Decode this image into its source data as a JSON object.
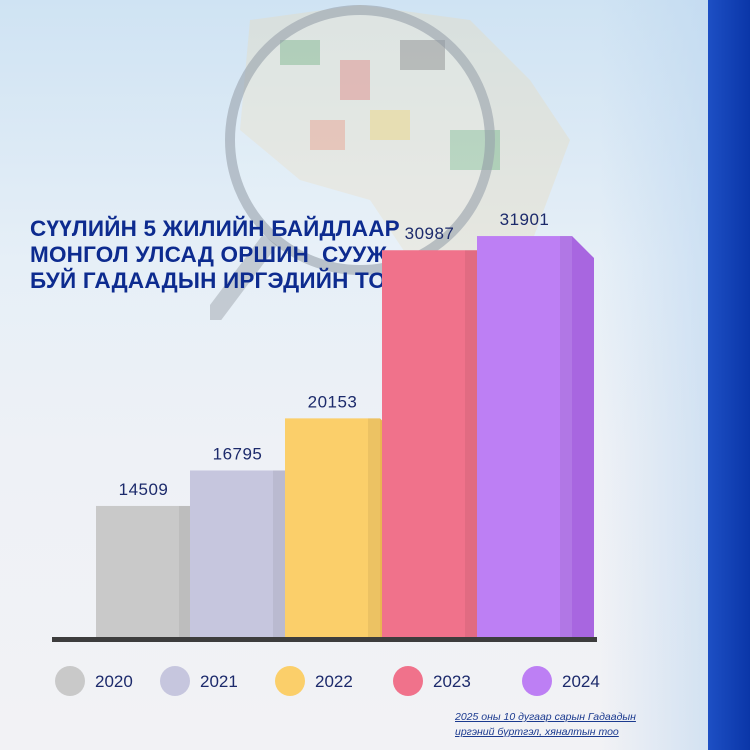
{
  "chart_data": {
    "type": "bar",
    "title": [
      "СҮҮЛИЙН 5 ЖИЛИЙН БАЙДЛААР",
      "МОНГОЛ УЛСАД ОРШИН  СУУЖ",
      "БУЙ ГАДААДЫН ИРГЭДИЙН ТОО"
    ],
    "categories": [
      "2020",
      "2021",
      "2022",
      "2023",
      "2024"
    ],
    "values": [
      14509,
      16795,
      20153,
      30987,
      31901
    ],
    "colors": [
      "#c9c9c9",
      "#c6c6de",
      "#fbcf6a",
      "#f0728b",
      "#bd7ff4"
    ],
    "side_colors": [
      "#b4b4b4",
      "#adadcb",
      "#e9b652",
      "#d9607a",
      "#a866e0"
    ],
    "legend": [
      "2020",
      "2021",
      "2022",
      "2023",
      "2024"
    ],
    "legend_position": "bottom",
    "grid": false,
    "xlabel": "",
    "ylabel": ""
  },
  "source_note": [
    "2025 оны 10 дугаар сарын Гадаадын",
    "иргэний бүртгэл, хяналтын тоо"
  ],
  "accent_color": "#0a36a8"
}
